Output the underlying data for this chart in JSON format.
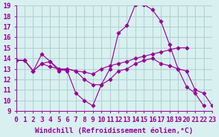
{
  "background_color": "#d8f0f0",
  "grid_color": "#b0d0d0",
  "line_color": "#990099",
  "xlabel": "Windchill (Refroidissement éolien,°C)",
  "xlim": [
    0,
    23
  ],
  "ylim": [
    9,
    19
  ],
  "xticks": [
    0,
    1,
    2,
    3,
    4,
    5,
    6,
    7,
    8,
    9,
    10,
    11,
    12,
    13,
    14,
    15,
    16,
    17,
    18,
    19,
    20,
    21,
    22,
    23
  ],
  "yticks": [
    9,
    10,
    11,
    12,
    13,
    14,
    15,
    16,
    17,
    18,
    19
  ],
  "series": [
    {
      "x": [
        0,
        1,
        2,
        3,
        4,
        5,
        6,
        7,
        8,
        9,
        10,
        11,
        12,
        13,
        14,
        15,
        16,
        17,
        18,
        19,
        20,
        21,
        22
      ],
      "y": [
        13.8,
        13.8,
        12.8,
        14.4,
        13.7,
        13.0,
        12.8,
        10.7,
        10.0,
        9.5,
        11.5,
        13.0,
        16.4,
        17.1,
        19.1,
        19.1,
        18.6,
        17.5,
        15.3,
        13.0,
        11.3,
        10.7,
        9.5
      ]
    },
    {
      "x": [
        0,
        1,
        2,
        3,
        4,
        5,
        6,
        7,
        8,
        9,
        10,
        11,
        12,
        13,
        14,
        15,
        16,
        17,
        18,
        19,
        20
      ],
      "y": [
        13.8,
        13.8,
        12.8,
        13.5,
        13.2,
        13.0,
        13.0,
        12.8,
        12.7,
        12.5,
        13.0,
        13.3,
        13.5,
        13.7,
        14.0,
        14.2,
        14.4,
        14.6,
        14.8,
        15.0,
        15.0
      ]
    },
    {
      "x": [
        0,
        1,
        2,
        3,
        4,
        5,
        6,
        7,
        8,
        9,
        10,
        11,
        12,
        13,
        14,
        15,
        16,
        17,
        18,
        19,
        20,
        21,
        22,
        23
      ],
      "y": [
        13.8,
        13.8,
        12.8,
        13.5,
        13.7,
        12.8,
        13.0,
        12.8,
        12.0,
        11.5,
        11.5,
        12.0,
        12.8,
        13.0,
        13.5,
        13.8,
        14.0,
        13.5,
        13.3,
        13.0,
        12.8,
        11.0,
        10.7,
        9.5
      ]
    }
  ],
  "tick_fontsize": 7,
  "label_fontsize": 7.5
}
